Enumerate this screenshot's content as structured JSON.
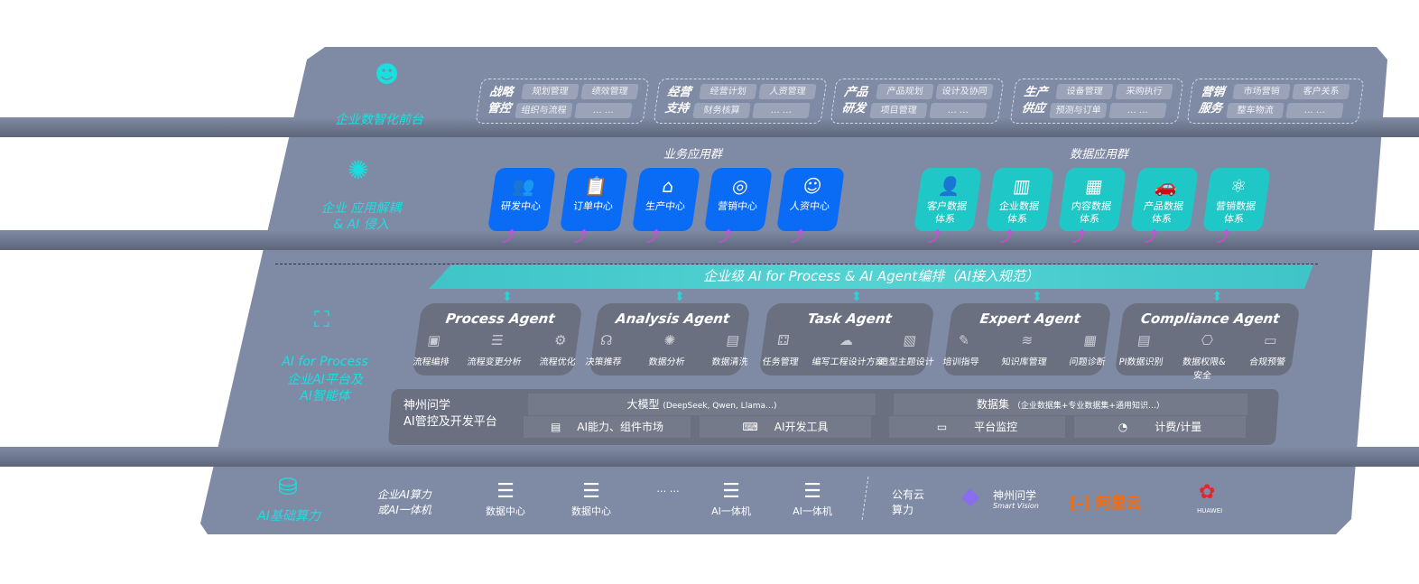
{
  "layers": {
    "front": {
      "label": "企业数智化前台",
      "icon": "brain-icon",
      "modules": [
        {
          "title": "战略管控",
          "items": [
            "规划管理",
            "绩效管理",
            "组织与流程",
            "… …"
          ]
        },
        {
          "title": "经营支持",
          "items": [
            "经营计划",
            "人资管理",
            "财务核算",
            "… …"
          ]
        },
        {
          "title": "产品研发",
          "items": [
            "产品规划",
            "设计及协同",
            "项目管理",
            "… …"
          ]
        },
        {
          "title": "生产供应",
          "items": [
            "设备管理",
            "采购执行",
            "预测与订单",
            "… …"
          ]
        },
        {
          "title": "营销服务",
          "items": [
            "市场营销",
            "客户关系",
            "整车物流",
            "… …"
          ]
        }
      ]
    },
    "apps": {
      "label": "企业 应用解耦\n& AI 侵入",
      "icon": "molecule-icon",
      "business_group": "业务应用群",
      "data_group": "数据应用群",
      "business": [
        {
          "label": "研发中心",
          "icon": "team-icon"
        },
        {
          "label": "订单中心",
          "icon": "clipboard-icon"
        },
        {
          "label": "生产中心",
          "icon": "factory-icon"
        },
        {
          "label": "营销中心",
          "icon": "target-icon"
        },
        {
          "label": "人资中心",
          "icon": "people-icon"
        }
      ],
      "data": [
        {
          "label": "客户数据\n体系",
          "icon": "user-icon"
        },
        {
          "label": "企业数据\n体系",
          "icon": "building-icon"
        },
        {
          "label": "内容数据\n体系",
          "icon": "books-icon"
        },
        {
          "label": "产品数据\n体系",
          "icon": "car-icon"
        },
        {
          "label": "营销数据\n体系",
          "icon": "atom-icon"
        }
      ],
      "accent_blue": "#0a6cf5",
      "accent_teal": "#1fc8c6",
      "arrow_color": "#e040e8"
    },
    "ai": {
      "label_en": "AI for Process",
      "label_cn": "企业AI平台及\nAI智能体",
      "icon": "face-scan-icon",
      "banner": "企业级 AI for Process & AI Agent编排（AI接入规范）",
      "agents": [
        {
          "name": "Process Agent",
          "features": [
            "流程编排",
            "流程变更分析",
            "流程优化"
          ]
        },
        {
          "name": "Analysis Agent",
          "features": [
            "决策推荐",
            "数据分析",
            "数据清洗"
          ]
        },
        {
          "name": "Task Agent",
          "features": [
            "任务管理",
            "编写工程设计方案",
            "造型主题设计"
          ]
        },
        {
          "name": "Expert Agent",
          "features": [
            "培训指导",
            "知识库管理",
            "问题诊断"
          ]
        },
        {
          "name": "Compliance Agent",
          "features": [
            "PI数据识别",
            "数据权限&\n安全",
            "合规预警"
          ]
        }
      ],
      "platform": {
        "title": "神州问学\nAI管控及开发平台",
        "model": "大模型",
        "model_note": "(DeepSeek, Qwen, Llama…)",
        "dataset": "数据集",
        "dataset_note": "（企业数据集+专业数据集+通用知识…）",
        "tools": [
          "AI能力、组件市场",
          "AI开发工具",
          "平台监控",
          "计费/计量"
        ]
      }
    },
    "infra": {
      "label": "AI基础算力",
      "icon": "database-icon",
      "enterprise": "企业AI算力\n或AI一体机",
      "servers": [
        "数据中心",
        "数据中心",
        "… …",
        "AI一体机",
        "AI一体机"
      ],
      "public": "公有云\n算力",
      "vendors": [
        {
          "name": "神州问学",
          "sub": "Smart Vision"
        },
        {
          "name": "阿里云",
          "color": "#ff6a00"
        },
        {
          "name": "HUAWEI",
          "color": "#e3262d"
        }
      ]
    }
  }
}
